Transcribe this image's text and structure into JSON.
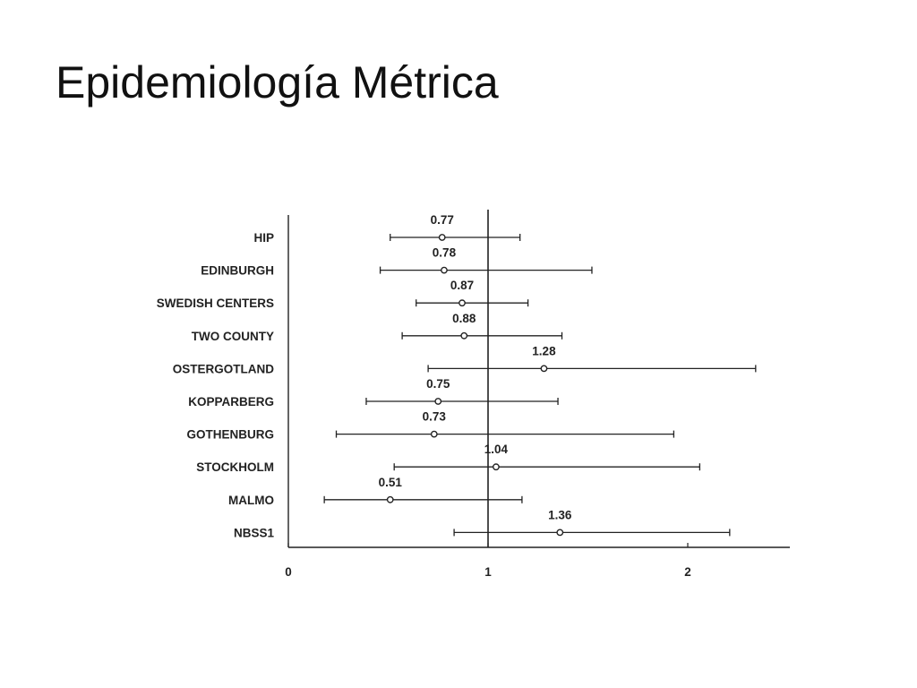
{
  "slide": {
    "title": "Epidemiología Métrica"
  },
  "colors": {
    "ink": "#222222",
    "background": "#ffffff"
  },
  "chart_data": {
    "type": "forest",
    "title": "",
    "xlabel": "",
    "ylabel": "",
    "xlim": [
      0,
      2.5
    ],
    "x_ticks": [
      0,
      1,
      2
    ],
    "reference_line": 1,
    "grid": false,
    "categories": [
      "HIP",
      "EDINBURGH",
      "SWEDISH CENTERS",
      "TWO COUNTY",
      "OSTERGOTLAND",
      "KOPPARBERG",
      "GOTHENBURG",
      "STOCKHOLM",
      "MALMO",
      "NBSS1"
    ],
    "series": [
      {
        "values": [
          0.77,
          0.78,
          0.87,
          0.88,
          1.28,
          0.75,
          0.73,
          1.04,
          0.51,
          1.36
        ],
        "value_labels": [
          "0.77",
          "0.78",
          "0.87",
          "0.88",
          "1.28",
          "0.75",
          "0.73",
          "1.04",
          "0.51",
          "1.36"
        ],
        "lower": [
          0.51,
          0.46,
          0.64,
          0.57,
          0.7,
          0.39,
          0.24,
          0.53,
          0.18,
          0.83
        ],
        "upper": [
          1.16,
          1.52,
          1.2,
          1.37,
          2.34,
          1.35,
          1.93,
          2.06,
          1.17,
          2.21
        ]
      }
    ]
  }
}
